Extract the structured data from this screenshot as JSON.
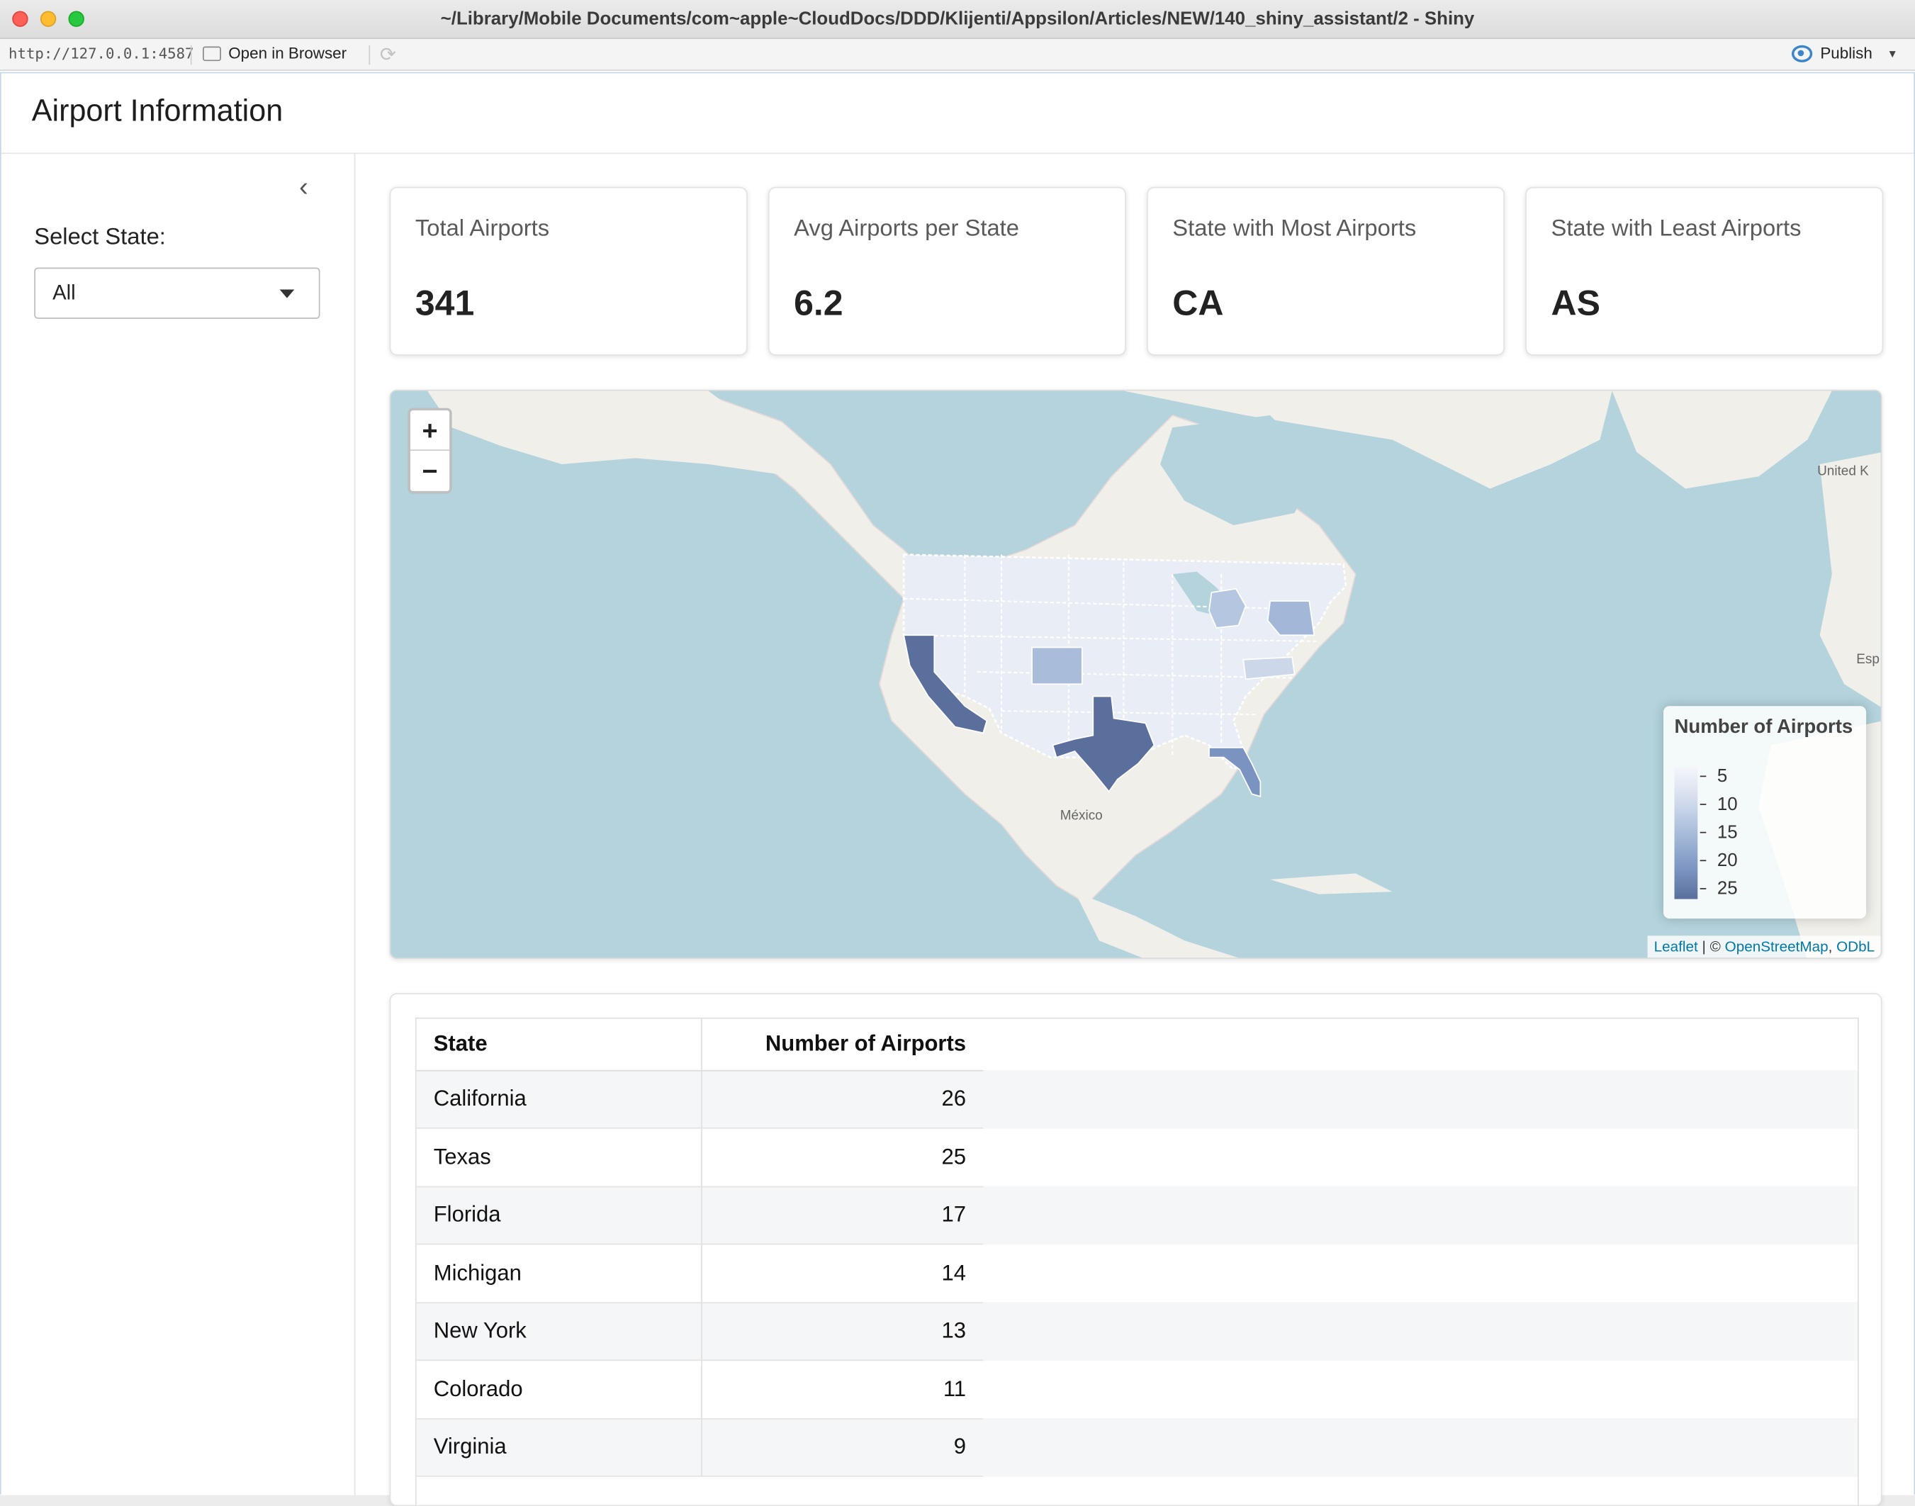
{
  "window": {
    "title": "~/Library/Mobile Documents/com~apple~CloudDocs/DDD/Klijenti/Appsilon/Articles/NEW/140_shiny_assistant/2 - Shiny"
  },
  "toolbar": {
    "url": "http://127.0.0.1:4587",
    "open_in_browser": "Open in Browser",
    "publish": "Publish"
  },
  "app": {
    "title": "Airport Information"
  },
  "sidebar": {
    "select_label": "Select State:",
    "select_value": "All"
  },
  "value_boxes": [
    {
      "title": "Total Airports",
      "value": "341"
    },
    {
      "title": "Avg Airports per State",
      "value": "6.2"
    },
    {
      "title": "State with Most Airports",
      "value": "CA"
    },
    {
      "title": "State with Least Airports",
      "value": "AS"
    }
  ],
  "map": {
    "zoom_in": "+",
    "zoom_out": "−",
    "labels": {
      "mexico": "México",
      "united_kingdom": "United K",
      "spain": "Esp"
    },
    "legend": {
      "title": "Number of Airports",
      "ticks": [
        "5",
        "10",
        "15",
        "20",
        "25"
      ],
      "colors": [
        "#f5f6fb",
        "#d3dced",
        "#9fb6d6",
        "#7b93c0",
        "#5a6f9c"
      ]
    },
    "attribution": {
      "leaflet": "Leaflet",
      "sep": " | © ",
      "osm": "OpenStreetMap",
      "comma": ", ",
      "odbl": "ODbL"
    }
  },
  "table": {
    "headers": [
      "State",
      "Number of Airports"
    ],
    "rows": [
      {
        "state": "California",
        "count": "26"
      },
      {
        "state": "Texas",
        "count": "25"
      },
      {
        "state": "Florida",
        "count": "17"
      },
      {
        "state": "Michigan",
        "count": "14"
      },
      {
        "state": "New York",
        "count": "13"
      },
      {
        "state": "Colorado",
        "count": "11"
      },
      {
        "state": "Virginia",
        "count": "9"
      }
    ]
  }
}
